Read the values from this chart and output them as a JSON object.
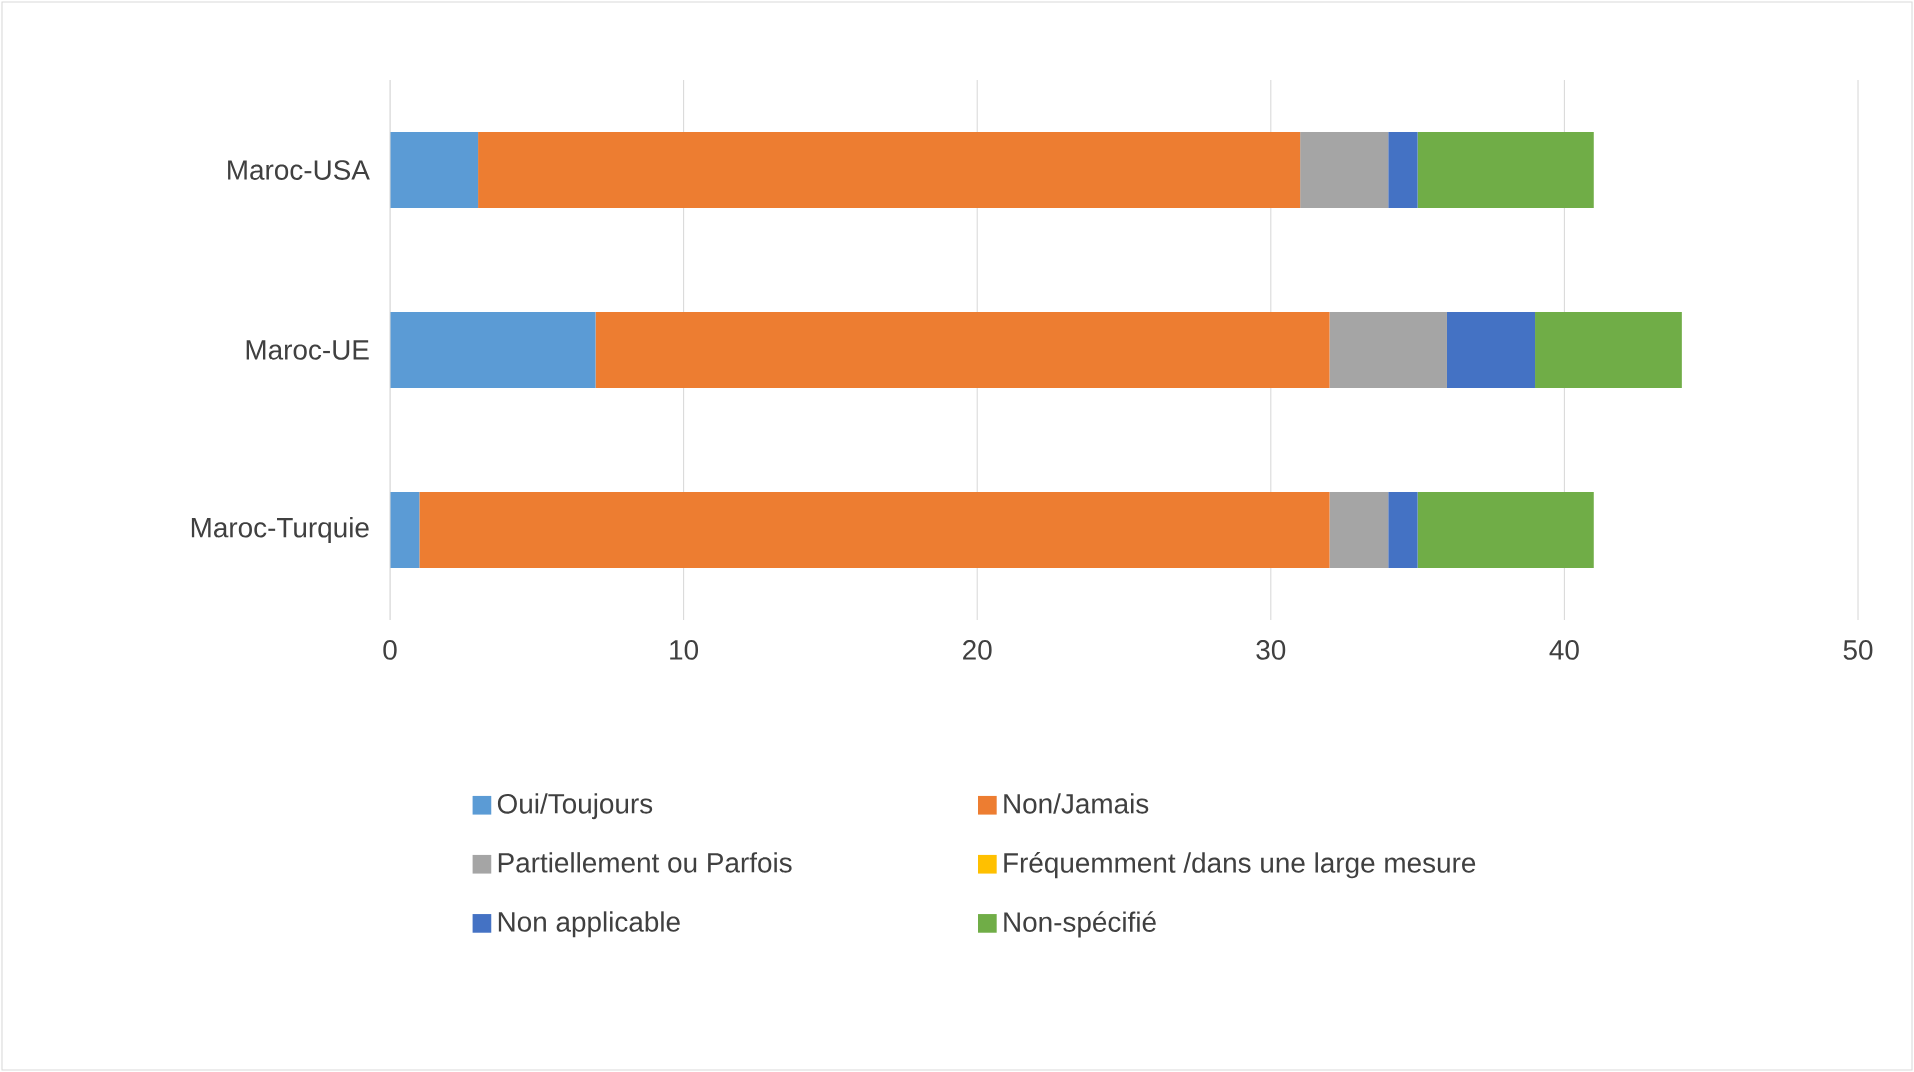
{
  "chart_data": {
    "type": "bar",
    "orientation": "horizontal",
    "stacked": true,
    "grid": "x",
    "legend": "bottom",
    "categories": [
      "Maroc-USA",
      "Maroc-UE",
      "Maroc-Turquie"
    ],
    "xlim": [
      0,
      50
    ],
    "xticks": [
      0,
      10,
      20,
      30,
      40,
      50
    ],
    "series": [
      {
        "name": "Oui/Toujours",
        "color": "#5b9bd5",
        "values": [
          3,
          7,
          1
        ]
      },
      {
        "name": "Non/Jamais",
        "color": "#ed7d31",
        "values": [
          28,
          25,
          31
        ]
      },
      {
        "name": "Partiellement ou Parfois",
        "color": "#a5a5a5",
        "values": [
          3,
          4,
          2
        ]
      },
      {
        "name": "Fréquemment /dans une large mesure",
        "color": "#ffc000",
        "values": [
          0,
          0,
          0
        ]
      },
      {
        "name": "Non applicable",
        "color": "#4472c4",
        "values": [
          1,
          3,
          1
        ]
      },
      {
        "name": "Non-spécifié",
        "color": "#70ad47",
        "values": [
          6,
          5,
          6
        ]
      }
    ]
  }
}
